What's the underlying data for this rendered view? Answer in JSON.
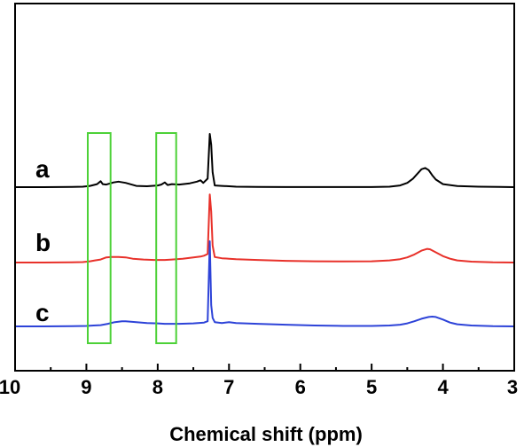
{
  "chart_data": {
    "type": "line",
    "title": "",
    "xlabel": "Chemical shift (ppm)",
    "ylabel": "",
    "xlim": [
      10,
      3
    ],
    "x_reversed": true,
    "xticks": [
      "10",
      "9",
      "8",
      "7",
      "6",
      "5",
      "4",
      "3"
    ],
    "y_axis": "none",
    "series": [
      {
        "name": "a",
        "color": "#000000",
        "x": [
          10.0,
          9.6,
          9.2,
          9.05,
          8.95,
          8.85,
          8.8,
          8.77,
          8.72,
          8.62,
          8.55,
          8.45,
          8.3,
          8.15,
          8.0,
          7.95,
          7.9,
          7.86,
          7.8,
          7.7,
          7.55,
          7.45,
          7.4,
          7.36,
          7.3,
          7.27,
          7.25,
          7.23,
          7.2,
          7.1,
          7.0,
          6.9,
          6.6,
          6.2,
          5.8,
          5.4,
          5.0,
          4.75,
          4.6,
          4.5,
          4.42,
          4.35,
          4.3,
          4.25,
          4.2,
          4.15,
          4.1,
          4.0,
          3.8,
          3.5,
          3.2,
          3.0
        ],
        "y": [
          0.0,
          0.0,
          0.005,
          0.01,
          0.03,
          0.07,
          0.14,
          0.07,
          0.06,
          0.11,
          0.13,
          0.1,
          0.03,
          0.02,
          0.04,
          0.06,
          0.11,
          0.05,
          0.07,
          0.06,
          0.09,
          0.13,
          0.16,
          0.1,
          0.2,
          1.25,
          1.0,
          0.35,
          0.04,
          0.03,
          0.02,
          0.01,
          0.005,
          0.003,
          0.002,
          0.002,
          0.003,
          0.01,
          0.04,
          0.1,
          0.2,
          0.33,
          0.42,
          0.45,
          0.4,
          0.28,
          0.18,
          0.07,
          0.025,
          0.01,
          0.005,
          0.0
        ]
      },
      {
        "name": "b",
        "color": "#e8312a",
        "x": [
          10.0,
          9.6,
          9.2,
          9.05,
          8.95,
          8.88,
          8.8,
          8.72,
          8.65,
          8.55,
          8.45,
          8.35,
          8.2,
          8.05,
          7.9,
          7.8,
          7.65,
          7.5,
          7.4,
          7.35,
          7.3,
          7.27,
          7.25,
          7.23,
          7.2,
          7.1,
          7.0,
          6.9,
          6.6,
          6.2,
          5.8,
          5.4,
          5.0,
          4.75,
          4.6,
          4.5,
          4.4,
          4.3,
          4.22,
          4.18,
          4.1,
          4.0,
          3.9,
          3.8,
          3.6,
          3.3,
          3.0
        ],
        "y": [
          0.0,
          0.0,
          0.005,
          0.01,
          0.03,
          0.05,
          0.07,
          0.12,
          0.13,
          0.13,
          0.12,
          0.09,
          0.07,
          0.06,
          0.06,
          0.07,
          0.09,
          0.12,
          0.14,
          0.16,
          0.2,
          1.6,
          1.2,
          0.4,
          0.13,
          0.1,
          0.09,
          0.08,
          0.06,
          0.04,
          0.03,
          0.025,
          0.03,
          0.05,
          0.08,
          0.12,
          0.19,
          0.28,
          0.32,
          0.31,
          0.24,
          0.15,
          0.09,
          0.05,
          0.02,
          0.005,
          0.0
        ]
      },
      {
        "name": "c",
        "color": "#2d43d8",
        "x": [
          10.0,
          9.6,
          9.2,
          9.0,
          8.9,
          8.8,
          8.7,
          8.6,
          8.5,
          8.45,
          8.3,
          8.15,
          8.0,
          7.9,
          7.7,
          7.5,
          7.35,
          7.3,
          7.27,
          7.25,
          7.23,
          7.2,
          7.1,
          7.0,
          6.9,
          6.6,
          6.2,
          5.8,
          5.4,
          5.0,
          4.75,
          4.6,
          4.5,
          4.4,
          4.3,
          4.2,
          4.15,
          4.1,
          4.0,
          3.9,
          3.8,
          3.6,
          3.3,
          3.0
        ],
        "y": [
          0.0,
          0.0,
          0.005,
          0.01,
          0.02,
          0.03,
          0.06,
          0.1,
          0.12,
          0.12,
          0.1,
          0.08,
          0.07,
          0.06,
          0.06,
          0.07,
          0.09,
          0.12,
          2.0,
          0.5,
          0.2,
          0.1,
          0.08,
          0.1,
          0.08,
          0.06,
          0.04,
          0.02,
          0.01,
          0.01,
          0.02,
          0.04,
          0.07,
          0.12,
          0.18,
          0.22,
          0.23,
          0.22,
          0.16,
          0.09,
          0.05,
          0.02,
          0.005,
          0.0
        ]
      }
    ],
    "annotations": [
      {
        "type": "box",
        "color": "#4cd137",
        "x_range": [
          8.98,
          8.66
        ]
      },
      {
        "type": "box",
        "color": "#4cd137",
        "x_range": [
          8.02,
          7.74
        ]
      }
    ]
  }
}
